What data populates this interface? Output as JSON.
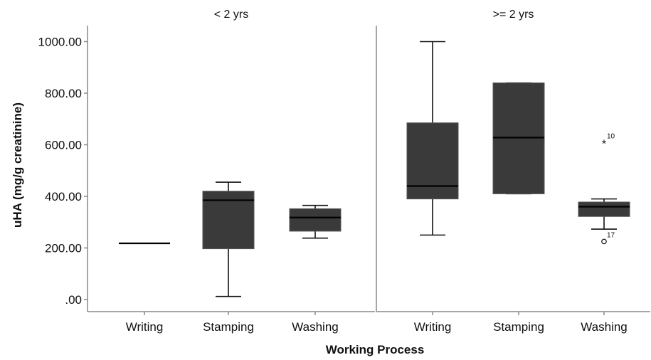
{
  "chart_data": {
    "type": "boxplot",
    "xlabel": "Working Process",
    "ylabel": "uHA (mg/g creatinine)",
    "ylim": [
      0,
      1050
    ],
    "yticks": [
      0,
      200,
      400,
      600,
      800,
      1000
    ],
    "ytick_labels": [
      ".00",
      "200.00",
      "400.00",
      "600.00",
      "800.00",
      "1000.00"
    ],
    "categories": [
      "Writing",
      "Stamping",
      "Washing"
    ],
    "box_color": "#3a3a3a",
    "panels": [
      {
        "title": "< 2 yrs",
        "boxes": [
          {
            "category": "Writing",
            "min": 218,
            "q1": 218,
            "median": 218,
            "q3": 218,
            "max": 218,
            "outliers": []
          },
          {
            "category": "Stamping",
            "min": 12,
            "q1": 197,
            "median": 385,
            "q3": 420,
            "max": 455,
            "outliers": []
          },
          {
            "category": "Washing",
            "min": 238,
            "q1": 265,
            "median": 318,
            "q3": 352,
            "max": 365,
            "outliers": []
          }
        ]
      },
      {
        "title": ">= 2 yrs",
        "boxes": [
          {
            "category": "Writing",
            "min": 250,
            "q1": 390,
            "median": 440,
            "q3": 685,
            "max": 1000,
            "outliers": []
          },
          {
            "category": "Stamping",
            "min": 410,
            "q1": 410,
            "median": 628,
            "q3": 840,
            "max": 840,
            "outliers": []
          },
          {
            "category": "Washing",
            "min": 273,
            "q1": 322,
            "median": 360,
            "q3": 378,
            "max": 390,
            "outliers": [
              {
                "value": 608,
                "marker": "*",
                "label": "10"
              },
              {
                "value": 225,
                "marker": "o",
                "label": "17"
              }
            ]
          }
        ]
      }
    ]
  }
}
